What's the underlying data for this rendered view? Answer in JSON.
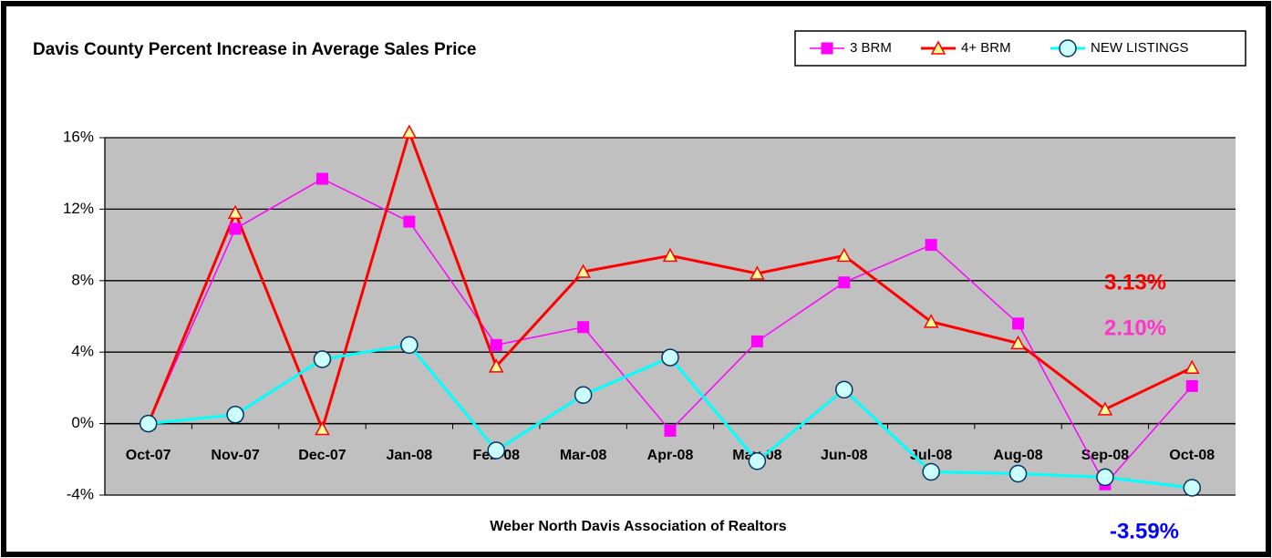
{
  "chart_data": {
    "type": "line",
    "title": "Davis County Percent Increase in Average Sales Price",
    "x_label": "Weber North Davis Association of Realtors",
    "categories": [
      "Oct-07",
      "Nov-07",
      "Dec-07",
      "Jan-08",
      "Feb-08",
      "Mar-08",
      "Apr-08",
      "May-08",
      "Jun-08",
      "Jul-08",
      "Aug-08",
      "Sep-08",
      "Oct-08"
    ],
    "series": [
      {
        "name": "3 BRM",
        "color": "#ff00ff",
        "marker": "square",
        "values": [
          0,
          10.9,
          13.7,
          11.3,
          4.4,
          5.4,
          -0.4,
          4.6,
          7.9,
          10.0,
          5.6,
          -3.4,
          2.1
        ]
      },
      {
        "name": "4+ BRM",
        "color": "#ff0000",
        "marker": "triangle",
        "values": [
          0,
          11.8,
          -0.3,
          16.3,
          3.2,
          8.5,
          9.4,
          8.4,
          9.4,
          5.7,
          4.5,
          0.8,
          3.13
        ]
      },
      {
        "name": "NEW LISTINGS",
        "color": "#00ffff",
        "marker": "circle",
        "values": [
          0,
          0.5,
          3.6,
          4.4,
          -1.5,
          1.6,
          3.7,
          -2.1,
          1.9,
          -2.7,
          -2.8,
          -3.0,
          -3.59
        ]
      }
    ],
    "annotations": [
      {
        "text": "3.13%",
        "color": "#ff0000"
      },
      {
        "text": "2.10%",
        "color": "#ff33cc"
      },
      {
        "text": "-3.59%",
        "color": "#0000ff"
      }
    ],
    "ylim": [
      -4,
      16
    ],
    "yticks": [
      {
        "value": -4,
        "label": "-4%"
      },
      {
        "value": 0,
        "label": "0%"
      },
      {
        "value": 4,
        "label": "4%"
      },
      {
        "value": 8,
        "label": "8%"
      },
      {
        "value": 12,
        "label": "12%"
      },
      {
        "value": 16,
        "label": "16%"
      }
    ],
    "grid": true,
    "legend": "top-right"
  }
}
